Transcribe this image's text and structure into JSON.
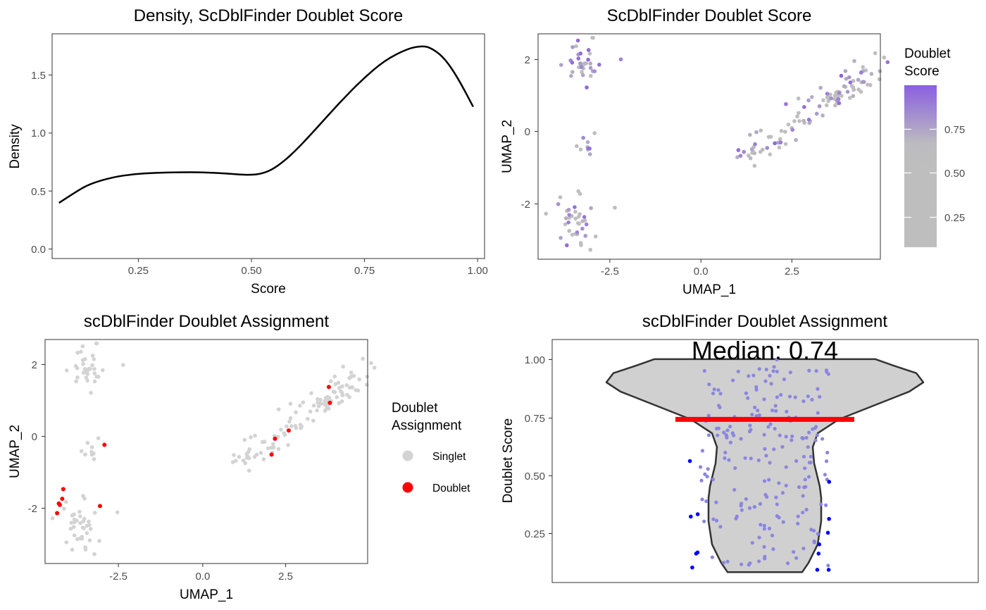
{
  "chart_data": [
    {
      "type": "line",
      "title": "Density, ScDblFinder Doublet Score",
      "xlabel": "Score",
      "ylabel": "Density",
      "xlim": [
        0.07,
        1.02
      ],
      "ylim": [
        -0.07,
        1.87
      ],
      "x_ticks": [
        0.25,
        0.5,
        0.75,
        1.0
      ],
      "x_tick_labels": [
        "0.25",
        "0.50",
        "0.75",
        "1.00"
      ],
      "y_ticks": [
        0.0,
        0.5,
        1.0,
        1.5
      ],
      "y_tick_labels": [
        "0.0",
        "0.5",
        "1.0",
        "1.5"
      ],
      "grid": false,
      "series": [
        {
          "name": "density",
          "x": [
            0.085,
            0.12,
            0.15,
            0.2,
            0.25,
            0.3,
            0.35,
            0.4,
            0.45,
            0.5,
            0.53,
            0.56,
            0.6,
            0.65,
            0.7,
            0.75,
            0.8,
            0.85,
            0.88,
            0.9,
            0.93,
            0.96,
            0.995
          ],
          "y": [
            0.41,
            0.5,
            0.57,
            0.63,
            0.66,
            0.67,
            0.675,
            0.675,
            0.665,
            0.65,
            0.66,
            0.71,
            0.84,
            1.05,
            1.27,
            1.47,
            1.64,
            1.74,
            1.765,
            1.755,
            1.67,
            1.5,
            1.24
          ]
        }
      ]
    },
    {
      "type": "scatter",
      "title": "ScDblFinder Doublet Score",
      "xlabel": "UMAP_1",
      "ylabel": "UMAP_2",
      "xlim": [
        -4.65,
        4.75
      ],
      "ylim": [
        -3.55,
        2.68
      ],
      "x_ticks": [
        -2.5,
        0.0,
        2.5
      ],
      "x_tick_labels": [
        "-2.5",
        "0.0",
        "2.5"
      ],
      "y_ticks": [
        -2,
        0,
        2
      ],
      "y_tick_labels": [
        "-2",
        "0",
        "2"
      ],
      "grid": false,
      "color_scale": {
        "low": "#bebebe",
        "high": "#8a60e0",
        "min": 0.08,
        "max": 1.0
      },
      "legend": {
        "title_line1": "Doublet",
        "title_line2": "Score",
        "placement": "right",
        "breaks": [
          0.25,
          0.5,
          0.75
        ],
        "break_labels": [
          "0.25",
          "0.50",
          "0.75"
        ]
      }
    },
    {
      "type": "scatter",
      "title": "scDblFinder Doublet Assignment",
      "xlabel": "UMAP_1",
      "ylabel": "UMAP_2",
      "xlim": [
        -4.65,
        4.75
      ],
      "ylim": [
        -3.55,
        2.68
      ],
      "x_ticks": [
        -2.5,
        0.0,
        2.5
      ],
      "x_tick_labels": [
        "-2.5",
        "0.0",
        "2.5"
      ],
      "y_ticks": [
        -2,
        0,
        2
      ],
      "y_tick_labels": [
        "-2",
        "0",
        "2"
      ],
      "grid": false,
      "legend": {
        "title_line1": "Doublet",
        "title_line2": "Assignment",
        "placement": "right",
        "entries": [
          {
            "label": "Singlet",
            "color": "#d3d3d3"
          },
          {
            "label": "Doublet",
            "color": "#ff0000"
          }
        ]
      },
      "doublets": [
        {
          "x": -4.3,
          "y": -2.15
        },
        {
          "x": -4.22,
          "y": -1.92
        },
        {
          "x": -4.25,
          "y": -1.88
        },
        {
          "x": -4.15,
          "y": -1.75
        },
        {
          "x": -4.12,
          "y": -1.48
        },
        {
          "x": -3.05,
          "y": -1.95
        },
        {
          "x": -2.92,
          "y": -0.25
        },
        {
          "x": 1.95,
          "y": -0.52
        },
        {
          "x": 2.05,
          "y": -0.08
        },
        {
          "x": 2.45,
          "y": 0.15
        },
        {
          "x": 3.62,
          "y": 1.36
        },
        {
          "x": 3.65,
          "y": 0.92
        }
      ]
    },
    {
      "type": "violin",
      "title": "scDblFinder Doublet Assignment",
      "xlabel": "",
      "ylabel": "Doublet Score",
      "ylim": [
        0.035,
        1.085
      ],
      "y_ticks": [
        0.25,
        0.5,
        0.75,
        1.0
      ],
      "y_tick_labels": [
        "0.25",
        "0.50",
        "0.75",
        "1.00"
      ],
      "median": 0.74,
      "median_label": "Median: 0.74",
      "score_min": 0.08,
      "score_max": 1.0,
      "outlier_color": "#0000ff",
      "point_color": "#8a86e0",
      "outliers": [
        {
          "y": 0.56,
          "side": "left"
        },
        {
          "y": 0.47,
          "side": "right"
        },
        {
          "y": 0.33,
          "side": "left"
        },
        {
          "y": 0.32,
          "side": "left"
        },
        {
          "y": 0.31,
          "side": "right"
        },
        {
          "y": 0.25,
          "side": "right"
        },
        {
          "y": 0.2,
          "side": "right"
        },
        {
          "y": 0.165,
          "side": "left"
        },
        {
          "y": 0.16,
          "side": "right"
        },
        {
          "y": 0.16,
          "side": "left"
        },
        {
          "y": 0.1,
          "side": "left"
        },
        {
          "y": 0.09,
          "side": "right"
        },
        {
          "y": 0.09,
          "side": "right"
        }
      ]
    }
  ]
}
